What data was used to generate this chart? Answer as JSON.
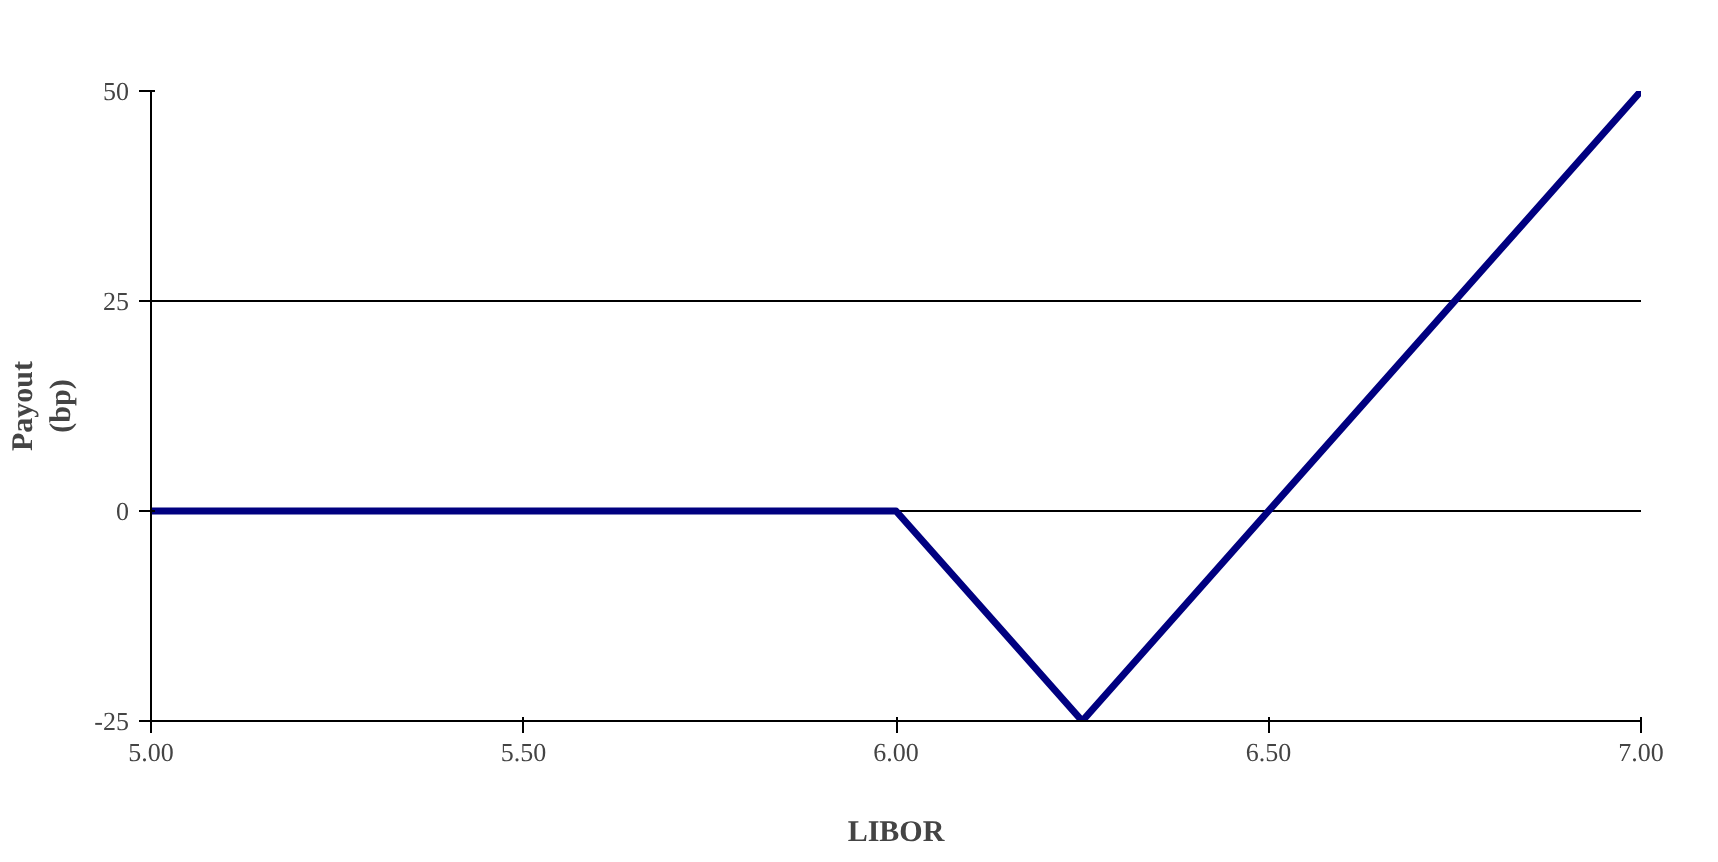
{
  "chart_data": {
    "type": "line",
    "xlabel": "LIBOR",
    "ylabel": "Payout\n(bp)",
    "x": [
      5.0,
      6.0,
      6.25,
      7.0
    ],
    "series": [
      {
        "color": "#000080",
        "values": [
          0,
          0,
          -25,
          50
        ]
      }
    ],
    "xlim": [
      5.0,
      7.0
    ],
    "ylim": [
      -25,
      50
    ],
    "xticks": [
      {
        "value": 5.0,
        "label": "5.00"
      },
      {
        "value": 5.5,
        "label": "5.50"
      },
      {
        "value": 6.0,
        "label": "6.00"
      },
      {
        "value": 6.5,
        "label": "6.50"
      },
      {
        "value": 7.0,
        "label": "7.00"
      }
    ],
    "yticks": [
      -25,
      0,
      25,
      50
    ],
    "grid": "y",
    "marker": "none",
    "line_style": "solid"
  }
}
